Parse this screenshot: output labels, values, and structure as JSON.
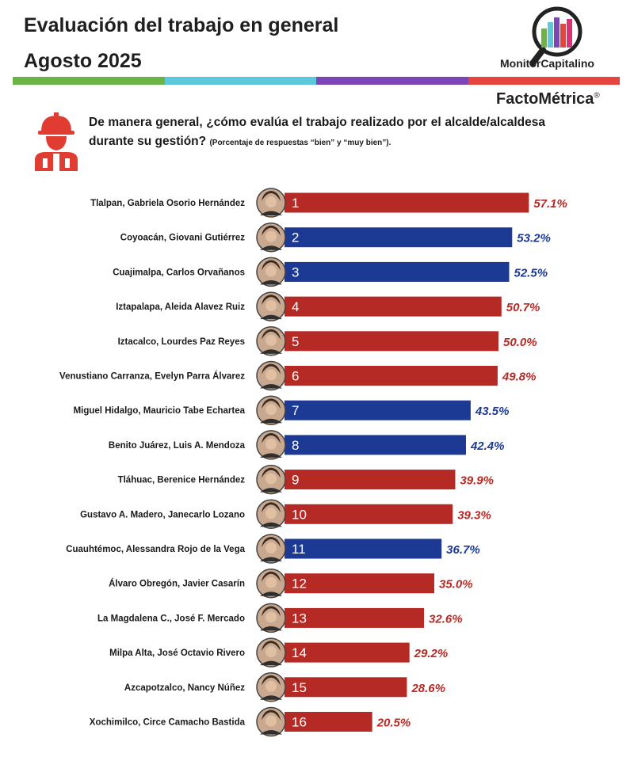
{
  "header": {
    "title": "Evaluación del trabajo en general",
    "date": "Agosto 2025",
    "brand": "MonitorCapitalino",
    "brand2": "FactoMétrica",
    "registered": "®"
  },
  "question": {
    "text": "De manera general, ¿cómo evalúa el trabajo realizado por el alcalde/alcaldesa durante su gestión?",
    "note": "(Porcentaje de respuestas “bien” y “muy bien”)."
  },
  "colors": {
    "red_bar": "#b52a24",
    "blue_bar": "#1c3a94",
    "stripe": [
      "#6cb446",
      "#5bc8dc",
      "#7b46b8",
      "#e5453e"
    ],
    "icon_red": "#e03c31"
  },
  "icons": [
    "logo-bar-chart-magnifier-icon",
    "construction-worker-icon",
    "portrait-avatar-icon"
  ],
  "chart_data": {
    "type": "bar",
    "orientation": "horizontal",
    "unit": "%",
    "xlim": [
      0,
      100
    ],
    "grid": false,
    "categories": [
      "Tlalpan, Gabriela Osorio Hernández",
      "Coyoacán, Giovani Gutiérrez",
      "Cuajimalpa, Carlos Orvañanos",
      "Iztapalapa, Aleida Alavez Ruiz",
      "Iztacalco, Lourdes Paz Reyes",
      "Venustiano Carranza, Evelyn Parra Álvarez",
      "Miguel Hidalgo, Mauricio Tabe Echartea",
      "Benito Juárez, Luis A. Mendoza",
      "Tláhuac, Berenice Hernández",
      "Gustavo A. Madero, Janecarlo Lozano",
      "Cuauhtémoc, Alessandra Rojo de la Vega",
      "Álvaro Obregón, Javier Casarín",
      "La Magdalena C., José F. Mercado",
      "Milpa Alta, José Octavio Rivero",
      "Azcapotzalco, Nancy Núñez",
      "Xochimilco, Circe Camacho Bastida"
    ],
    "ranks": [
      "1",
      "2",
      "3",
      "4",
      "5",
      "6",
      "7",
      "8",
      "9",
      "10",
      "11",
      "12",
      "13",
      "14",
      "15",
      "16"
    ],
    "values": [
      57.1,
      53.2,
      52.5,
      50.7,
      50.0,
      49.8,
      43.5,
      42.4,
      39.9,
      39.3,
      36.7,
      35.0,
      32.6,
      29.2,
      28.6,
      20.5
    ],
    "value_labels": [
      "57.1%",
      "53.2%",
      "52.5%",
      "50.7%",
      "50.0%",
      "49.8%",
      "43.5%",
      "42.4%",
      "39.9%",
      "39.3%",
      "36.7%",
      "35.0%",
      "32.6%",
      "29.2%",
      "28.6%",
      "20.5%"
    ],
    "bar_colors": [
      "red",
      "blue",
      "blue",
      "red",
      "red",
      "red",
      "blue",
      "blue",
      "red",
      "red",
      "blue",
      "red",
      "red",
      "red",
      "red",
      "red"
    ]
  }
}
